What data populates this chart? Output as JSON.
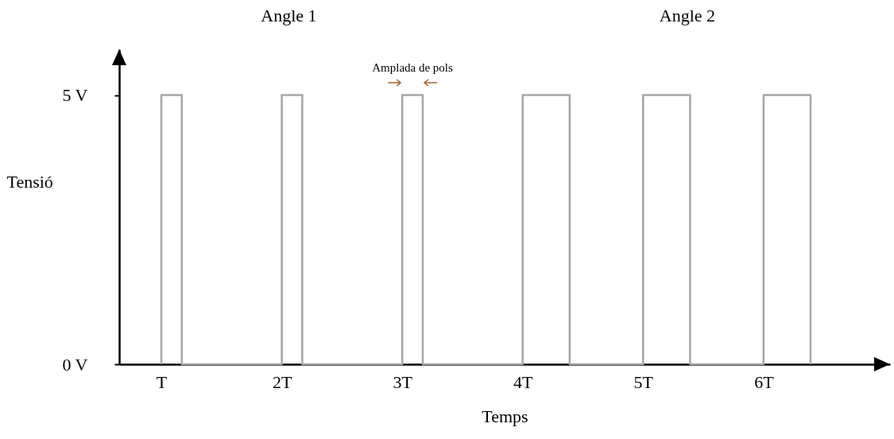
{
  "chart_data": {
    "type": "line",
    "xlabel": "Temps",
    "ylabel": "Tensió",
    "color": "#a6a6a6",
    "x": [
      1,
      1,
      1.17,
      1.17,
      2,
      2,
      2.17,
      2.17,
      3,
      3,
      3.17,
      3.17,
      4,
      4,
      4.39,
      4.39,
      5,
      5,
      5.39,
      5.39,
      6,
      6,
      6.39,
      6.39
    ],
    "values": [
      0,
      5,
      5,
      0,
      0,
      5,
      5,
      0,
      0,
      5,
      5,
      0,
      0,
      5,
      5,
      0,
      0,
      5,
      5,
      0,
      0,
      5,
      5,
      0
    ],
    "xlim": [
      0.65,
      7.05
    ],
    "ylim": [
      0,
      5.85
    ],
    "xticks": [
      {
        "value": 1,
        "label": "T"
      },
      {
        "value": 2,
        "label": "2T"
      },
      {
        "value": 3,
        "label": "3T"
      },
      {
        "value": 4,
        "label": "4T"
      },
      {
        "value": 5,
        "label": "5T"
      },
      {
        "value": 6,
        "label": "6T"
      }
    ],
    "yticks": [
      {
        "value": 0,
        "label": "0 V"
      },
      {
        "value": 5,
        "label": "5 V"
      }
    ],
    "annotations": [
      "Angle 1",
      "Angle 2",
      "Amplada de pols"
    ],
    "grid": false,
    "marker": "none",
    "line_style": "solid"
  }
}
